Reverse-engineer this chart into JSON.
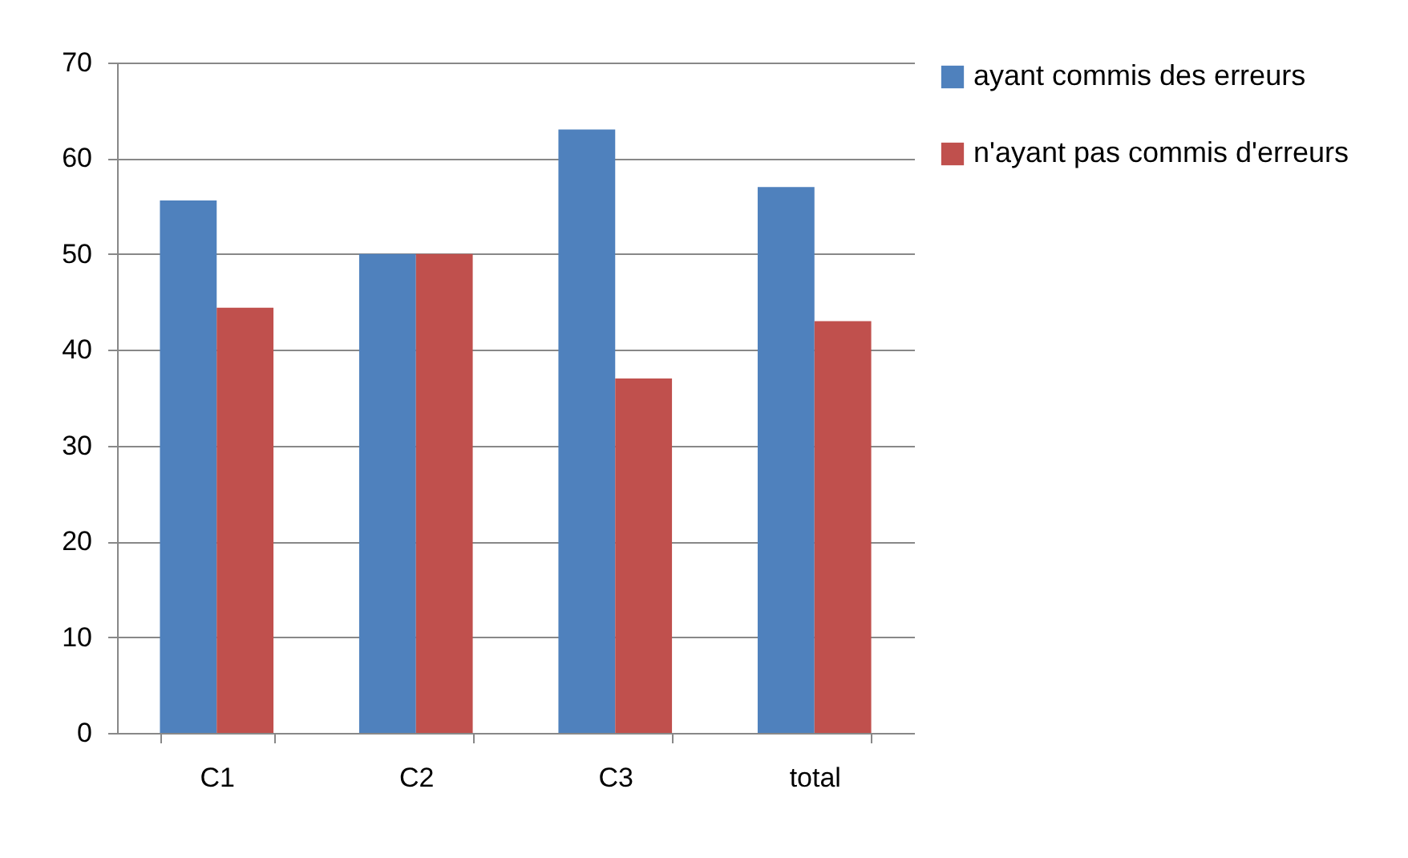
{
  "chart_data": {
    "type": "bar",
    "categories": [
      "C1",
      "C2",
      "C3",
      "total"
    ],
    "series": [
      {
        "name": "ayant commis des erreurs",
        "color": "#4f81bd",
        "values": [
          55.6,
          50,
          63,
          57
        ]
      },
      {
        "name": "n'ayant pas commis d'erreurs",
        "color": "#c0504d",
        "values": [
          44.4,
          50,
          37,
          43
        ]
      }
    ],
    "ylim": [
      0,
      70
    ],
    "yticks": [
      0,
      10,
      20,
      30,
      40,
      50,
      60,
      70
    ],
    "grid": "y",
    "legend": "right"
  }
}
